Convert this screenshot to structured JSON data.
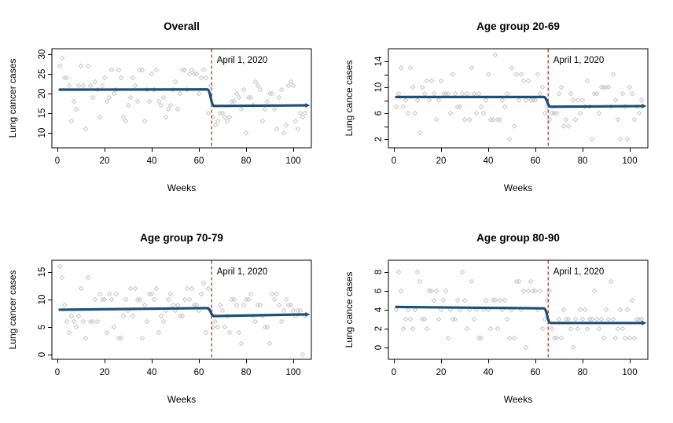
{
  "figure": {
    "background": "#ffffff",
    "description": "2x2 panel figure of weekly lung cancer cases with interrupted time-series fit"
  },
  "colors": {
    "point_stroke": "#c6c6c6",
    "trend_line": "#1f4e79",
    "event_line": "#b22222",
    "axis": "#000000",
    "text": "#000000"
  },
  "chart_data": [
    {
      "key": "overall",
      "type": "scatter",
      "title": "Overall",
      "ylabel": "Lung cancer cases",
      "xlabel": "Weeks",
      "x_ticks": [
        0,
        20,
        40,
        60,
        80,
        100
      ],
      "y_ticks": [
        10,
        15,
        20,
        25,
        30
      ],
      "y_minor_ticks": [],
      "weeks_start": 1,
      "values": [
        27,
        29,
        24,
        24,
        22,
        13,
        18,
        16,
        22,
        27,
        22,
        11,
        27,
        22,
        19,
        23,
        21,
        14,
        22,
        24,
        18,
        19,
        26,
        20,
        21,
        26,
        24,
        14,
        13,
        17,
        19,
        24,
        22,
        18,
        26,
        26,
        13,
        21,
        18,
        25,
        21,
        26,
        18,
        17,
        19,
        14,
        16,
        17,
        21,
        23,
        16,
        20,
        26,
        26,
        21,
        25,
        26,
        25,
        25,
        20,
        24,
        26,
        24,
        15,
        22,
        14,
        12,
        13,
        15,
        15,
        14,
        13,
        14,
        18,
        18,
        20,
        19,
        16,
        21,
        10,
        19,
        19,
        17,
        23,
        22,
        21,
        13,
        16,
        18,
        20,
        20,
        16,
        11,
        19,
        21,
        10,
        12,
        22,
        23,
        22,
        13,
        11,
        15,
        14,
        15
      ],
      "trend": {
        "pre_level_start": 21.0,
        "pre_level_end": 21.05,
        "drop_start_week": 63.5,
        "drop_end_week": 66.5,
        "post_level_start": 16.85,
        "post_level_end": 17.0
      },
      "event_week": 65.4,
      "event_label": "April 1, 2020"
    },
    {
      "key": "age-20-69",
      "type": "scatter",
      "title": "Age group 20-69",
      "ylabel": "Lung cance cases",
      "xlabel": "Weeks",
      "x_ticks": [
        0,
        20,
        40,
        60,
        80,
        100
      ],
      "y_ticks": [
        2,
        6,
        10,
        14
      ],
      "y_minor_ticks": [
        4,
        8,
        12
      ],
      "weeks_start": 1,
      "values": [
        7,
        9,
        13,
        7,
        8,
        6,
        13,
        10,
        6,
        8,
        3,
        10,
        9,
        11,
        8,
        11,
        9,
        5,
        8,
        11,
        9,
        9,
        9,
        6,
        12,
        9,
        7,
        7,
        9,
        5,
        9,
        5,
        13,
        9,
        6,
        9,
        7,
        6,
        8,
        12,
        5,
        5,
        15,
        5,
        5,
        8,
        7,
        9,
        2,
        13,
        4,
        12,
        8,
        12,
        11,
        8,
        11,
        8,
        8,
        8,
        12,
        9,
        10,
        6,
        7,
        5,
        6,
        6,
        6,
        9,
        10,
        4,
        5,
        4,
        9,
        8,
        5,
        8,
        6,
        8,
        7,
        11,
        7,
        2,
        9,
        9,
        6,
        10,
        10,
        10,
        10,
        7,
        12,
        8,
        5,
        2,
        9,
        7,
        2,
        10,
        9,
        5,
        7,
        6,
        8
      ],
      "trend": {
        "pre_level_start": 8.5,
        "pre_level_end": 8.5,
        "drop_start_week": 63.5,
        "drop_end_week": 66.5,
        "post_level_start": 7.0,
        "post_level_end": 7.1
      },
      "event_week": 65.4,
      "event_label": "April 1, 2020"
    },
    {
      "key": "age-70-79",
      "type": "scatter",
      "title": "Age group 70-79",
      "ylabel": "Lung cancer cases",
      "xlabel": "Weeks",
      "x_ticks": [
        0,
        20,
        40,
        60,
        80,
        100
      ],
      "y_ticks": [
        0,
        5,
        10,
        15
      ],
      "y_minor_ticks": [],
      "weeks_start": 1,
      "values": [
        16,
        14,
        9,
        6,
        4,
        7,
        6,
        5,
        7,
        12,
        6,
        3,
        14,
        6,
        6,
        10,
        6,
        11,
        10,
        10,
        4,
        11,
        10,
        5,
        11,
        3,
        3,
        7,
        10,
        8,
        12,
        7,
        12,
        10,
        10,
        3,
        9,
        6,
        11,
        11,
        10,
        12,
        4,
        7,
        6,
        8,
        10,
        11,
        9,
        8,
        9,
        7,
        7,
        10,
        12,
        10,
        12,
        9,
        9,
        8,
        11,
        13,
        4,
        12,
        8,
        5,
        6,
        5,
        9,
        8,
        5,
        7,
        4,
        10,
        10,
        9,
        4,
        2,
        9,
        10,
        10,
        11,
        7,
        6,
        9,
        9,
        7,
        5,
        5,
        2,
        11,
        10,
        11,
        9,
        6,
        8,
        10,
        9,
        9,
        8,
        7,
        8,
        8,
        0,
        7
      ],
      "trend": {
        "pre_level_start": 8.15,
        "pre_level_end": 8.45,
        "drop_start_week": 63.5,
        "drop_end_week": 66.5,
        "post_level_start": 7.0,
        "post_level_end": 7.3
      },
      "event_week": 65.4,
      "event_label": "April 1, 2020"
    },
    {
      "key": "age-80-90",
      "type": "scatter",
      "title": "Age group 80-90",
      "ylabel": "Lung cance cases",
      "xlabel": "Weeks",
      "x_ticks": [
        0,
        20,
        40,
        60,
        80,
        100
      ],
      "y_ticks": [
        0,
        2,
        4,
        6,
        8
      ],
      "y_minor_ticks": [],
      "weeks_start": 1,
      "values": [
        4,
        8,
        6,
        2,
        3,
        4,
        3,
        2,
        4,
        8,
        7,
        3,
        3,
        2,
        6,
        6,
        5,
        6,
        3,
        4,
        5,
        6,
        1,
        4,
        3,
        3,
        5,
        4,
        8,
        5,
        2,
        4,
        7,
        3,
        4,
        1,
        1,
        4,
        5,
        4,
        2,
        5,
        5,
        2,
        5,
        4,
        5,
        3,
        1,
        4,
        1,
        7,
        7,
        4,
        6,
        0,
        6,
        7,
        6,
        6,
        4,
        6,
        2,
        3,
        5,
        6,
        2,
        1,
        1,
        3,
        1,
        4,
        3,
        3,
        2,
        0,
        3,
        2,
        4,
        3,
        4,
        2,
        3,
        3,
        6,
        3,
        2,
        3,
        1,
        4,
        3,
        7,
        3,
        1,
        2,
        4,
        2,
        1,
        4,
        1,
        5,
        1,
        3,
        3,
        3
      ],
      "trend": {
        "pre_level_start": 4.3,
        "pre_level_end": 4.15,
        "drop_start_week": 63.5,
        "drop_end_week": 66.5,
        "post_level_start": 2.6,
        "post_level_end": 2.6
      },
      "event_week": 65.4,
      "event_label": "April 1, 2020"
    }
  ]
}
